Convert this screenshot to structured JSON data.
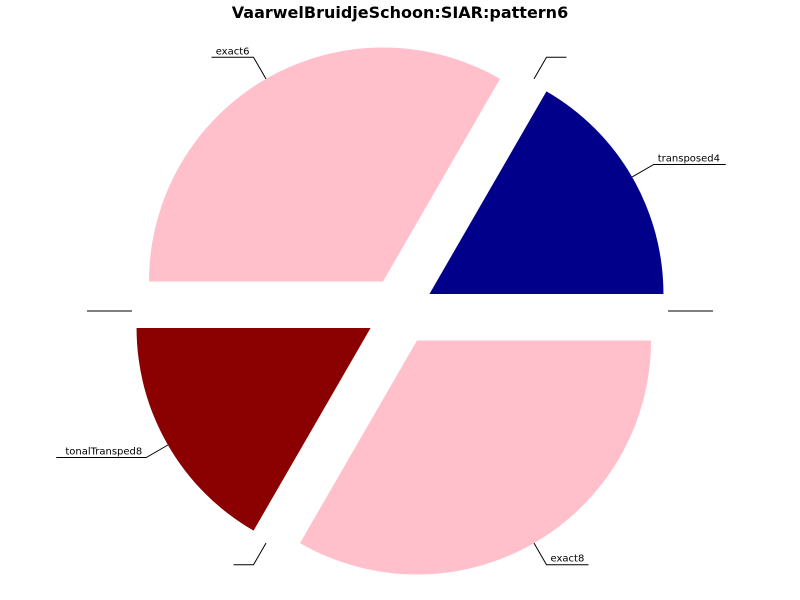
{
  "chart_data": {
    "type": "pie",
    "title": "VaarwelBruidjeSchoon:SIAR:pattern6",
    "slices": [
      {
        "label": "transposed4",
        "value": 1,
        "color": "#00008B"
      },
      {
        "label": "",
        "value": 0,
        "color": "#000000"
      },
      {
        "label": "exact6",
        "value": 2,
        "color": "#FFC0CB"
      },
      {
        "label": "",
        "value": 0,
        "color": "#000000"
      },
      {
        "label": "tonalTransped8",
        "value": 1,
        "color": "#8B0000"
      },
      {
        "label": "",
        "value": 0,
        "color": "#000000"
      },
      {
        "label": "exact8",
        "value": 2,
        "color": "#FFC0CB"
      },
      {
        "label": "",
        "value": 0,
        "color": "#000000"
      }
    ],
    "start_angle_deg": 0,
    "direction": "counterclockwise",
    "exploded": true
  }
}
